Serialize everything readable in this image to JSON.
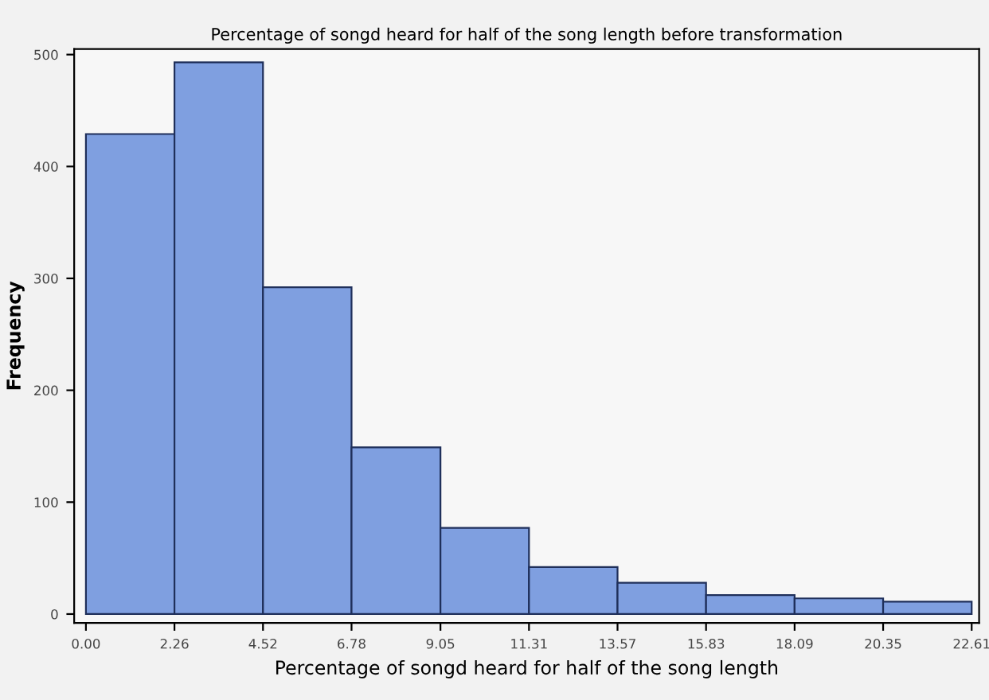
{
  "chart_data": {
    "type": "histogram",
    "title": "Percentage of songd heard for half of the song length before transformation",
    "xlabel": "Percentage of songd heard for half of the song length",
    "ylabel": "Frequency",
    "bins": [
      0.0,
      2.26,
      4.52,
      6.78,
      9.05,
      11.31,
      13.57,
      15.83,
      18.09,
      20.35,
      22.61
    ],
    "values": [
      429,
      493,
      292,
      149,
      77,
      42,
      28,
      17,
      14,
      11
    ],
    "color": "#7f9fe0",
    "xlim": [
      -0.3,
      22.8
    ],
    "ylim": [
      -8,
      505
    ],
    "xticks": [
      {
        "value": 0.0,
        "label": "0.00"
      },
      2.26,
      4.52,
      6.78,
      9.05,
      11.31,
      13.57,
      15.83,
      18.09,
      20.35,
      22.61
    ],
    "yticks": [
      0,
      100,
      200,
      300,
      400,
      500
    ],
    "grid": false
  }
}
